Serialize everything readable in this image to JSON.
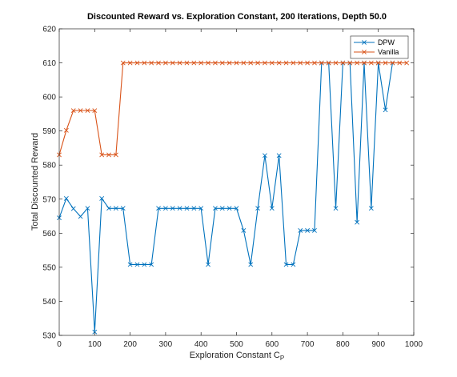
{
  "chart_data": {
    "type": "line",
    "title": "Discounted Reward vs. Exploration Constant, 200 Iterations, Depth 50.0",
    "xlabel": "Exploration Constant C",
    "xlabel_subscript": "P",
    "ylabel": "Total Discounted Reward",
    "xlim": [
      0,
      1000
    ],
    "ylim": [
      530,
      620
    ],
    "xticks": [
      0,
      100,
      200,
      300,
      400,
      500,
      600,
      700,
      800,
      900,
      1000
    ],
    "yticks": [
      530,
      540,
      550,
      560,
      570,
      580,
      590,
      600,
      610,
      620
    ],
    "grid": false,
    "legend_position": "top-right",
    "series": [
      {
        "name": "DPW",
        "color": "#0072BD",
        "marker": "x",
        "x": [
          0,
          20,
          40,
          60,
          80,
          100,
          120,
          140,
          160,
          180,
          200,
          220,
          240,
          260,
          280,
          300,
          320,
          340,
          360,
          380,
          400,
          420,
          440,
          460,
          480,
          500,
          520,
          540,
          560,
          580,
          600,
          620,
          640,
          660,
          680,
          700,
          720,
          740,
          760,
          780,
          800,
          820,
          840,
          860,
          880,
          900,
          920,
          940
        ],
        "values": [
          564.5,
          570.2,
          567.2,
          564.9,
          567.3,
          531.0,
          570.2,
          567.3,
          567.3,
          567.3,
          550.8,
          550.8,
          550.8,
          550.8,
          567.3,
          567.3,
          567.3,
          567.3,
          567.3,
          567.3,
          567.3,
          550.8,
          567.3,
          567.3,
          567.3,
          567.3,
          560.8,
          550.8,
          567.3,
          582.8,
          567.3,
          582.8,
          550.8,
          550.8,
          560.8,
          560.8,
          560.8,
          610.0,
          610.0,
          567.3,
          610.0,
          610.0,
          563.2,
          610.0,
          567.3,
          610.0,
          596.2,
          610.0
        ]
      },
      {
        "name": "Vanilla",
        "color": "#D95319",
        "marker": "x",
        "x": [
          0,
          20,
          40,
          60,
          80,
          100,
          120,
          140,
          160,
          180,
          200,
          220,
          240,
          260,
          280,
          300,
          320,
          340,
          360,
          380,
          400,
          420,
          440,
          460,
          480,
          500,
          520,
          540,
          560,
          580,
          600,
          620,
          640,
          660,
          680,
          700,
          720,
          740,
          760,
          780,
          800,
          820,
          840,
          860,
          880,
          900,
          920,
          940,
          960,
          980
        ],
        "values": [
          583.0,
          590.2,
          596.0,
          596.0,
          596.0,
          596.0,
          583.0,
          583.0,
          583.0,
          610.0,
          610.0,
          610.0,
          610.0,
          610.0,
          610.0,
          610.0,
          610.0,
          610.0,
          610.0,
          610.0,
          610.0,
          610.0,
          610.0,
          610.0,
          610.0,
          610.0,
          610.0,
          610.0,
          610.0,
          610.0,
          610.0,
          610.0,
          610.0,
          610.0,
          610.0,
          610.0,
          610.0,
          610.0,
          610.0,
          610.0,
          610.0,
          610.0,
          610.0,
          610.0,
          610.0,
          610.0,
          610.0,
          610.0,
          610.0,
          610.0
        ]
      }
    ]
  }
}
